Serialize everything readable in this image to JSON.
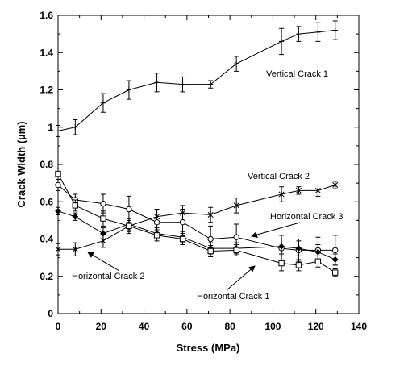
{
  "chart_data": {
    "type": "line",
    "xlabel": "Stress (MPa)",
    "ylabel": "Crack Width (µm)",
    "xlim": [
      0,
      140
    ],
    "ylim": [
      0,
      1.6
    ],
    "xticks": [
      0,
      20,
      40,
      60,
      80,
      100,
      120,
      140
    ],
    "xtick_labels": [
      "0",
      "20",
      "40",
      "60",
      "80",
      "100",
      "120",
      "140"
    ],
    "yticks": [
      0,
      0.2,
      0.4,
      0.6,
      0.8,
      1.0,
      1.2,
      1.4,
      1.6
    ],
    "ytick_labels": [
      "0",
      "0.2",
      "0.4",
      "0.6",
      "0.8",
      "1",
      "1.2",
      "1.4",
      "1.6"
    ],
    "grid": false,
    "series": [
      {
        "name": "Vertical Crack 1",
        "marker": "plus",
        "x": [
          0,
          8,
          21,
          33,
          46,
          58,
          71,
          83,
          104,
          112,
          121,
          129
        ],
        "y": [
          0.98,
          1.0,
          1.13,
          1.2,
          1.24,
          1.23,
          1.23,
          1.34,
          1.46,
          1.5,
          1.51,
          1.52
        ],
        "err": [
          0.03,
          0.04,
          0.05,
          0.05,
          0.05,
          0.04,
          0.02,
          0.04,
          0.07,
          0.04,
          0.05,
          0.05
        ]
      },
      {
        "name": "Vertical Crack 2",
        "marker": "star",
        "x": [
          0,
          8,
          21,
          33,
          46,
          58,
          71,
          83,
          104,
          112,
          121,
          129
        ],
        "y": [
          0.345,
          0.345,
          0.39,
          0.47,
          0.52,
          0.54,
          0.53,
          0.58,
          0.64,
          0.66,
          0.66,
          0.69
        ],
        "err": [
          0.03,
          0.035,
          0.035,
          0.03,
          0.04,
          0.04,
          0.04,
          0.04,
          0.04,
          0.02,
          0.03,
          0.02
        ]
      },
      {
        "name": "Horizontal Crack 3",
        "marker": "circle",
        "x": [
          0,
          8,
          21,
          33,
          46,
          58,
          71,
          83,
          104,
          112,
          121,
          129
        ],
        "y": [
          0.69,
          0.61,
          0.59,
          0.56,
          0.49,
          0.49,
          0.4,
          0.41,
          0.35,
          0.34,
          0.34,
          0.34
        ],
        "err": [
          0.03,
          0.03,
          0.05,
          0.07,
          0.07,
          0.07,
          0.07,
          0.07,
          0.07,
          0.06,
          0.07,
          0.08
        ]
      },
      {
        "name": "Horizontal Crack 2",
        "marker": "diamond",
        "x": [
          0,
          8,
          21,
          33,
          46,
          58,
          71,
          83,
          104,
          112,
          121,
          129
        ],
        "y": [
          0.55,
          0.52,
          0.43,
          0.48,
          0.43,
          0.41,
          0.35,
          0.35,
          0.36,
          0.35,
          0.33,
          0.29
        ],
        "err": [
          0.02,
          0.02,
          0.03,
          0.03,
          0.03,
          0.03,
          0.03,
          0.03,
          0.04,
          0.04,
          0.04,
          0.03
        ]
      },
      {
        "name": "Horizontal Crack 1",
        "marker": "square",
        "x": [
          0,
          8,
          21,
          33,
          46,
          58,
          71,
          83,
          104,
          112,
          121,
          129
        ],
        "y": [
          0.75,
          0.58,
          0.51,
          0.47,
          0.42,
          0.4,
          0.335,
          0.34,
          0.27,
          0.26,
          0.28,
          0.22
        ],
        "err": [
          0.03,
          0.03,
          0.04,
          0.04,
          0.03,
          0.03,
          0.03,
          0.03,
          0.04,
          0.03,
          0.03,
          0.02
        ]
      }
    ],
    "annotations": [
      {
        "text": "Vertical Crack 1",
        "series": "Vertical Crack 1",
        "arrow": false
      },
      {
        "text": "Vertical Crack 2",
        "series": "Vertical Crack 2",
        "arrow": false
      },
      {
        "text": "Horizontal Crack 3",
        "series": "Horizontal Crack 3",
        "arrow": true
      },
      {
        "text": "Horizontal Crack 2",
        "series": "Horizontal Crack 2",
        "arrow": true
      },
      {
        "text": "Horizontal Crack 1",
        "series": "Horizontal Crack 1",
        "arrow": true
      }
    ]
  }
}
